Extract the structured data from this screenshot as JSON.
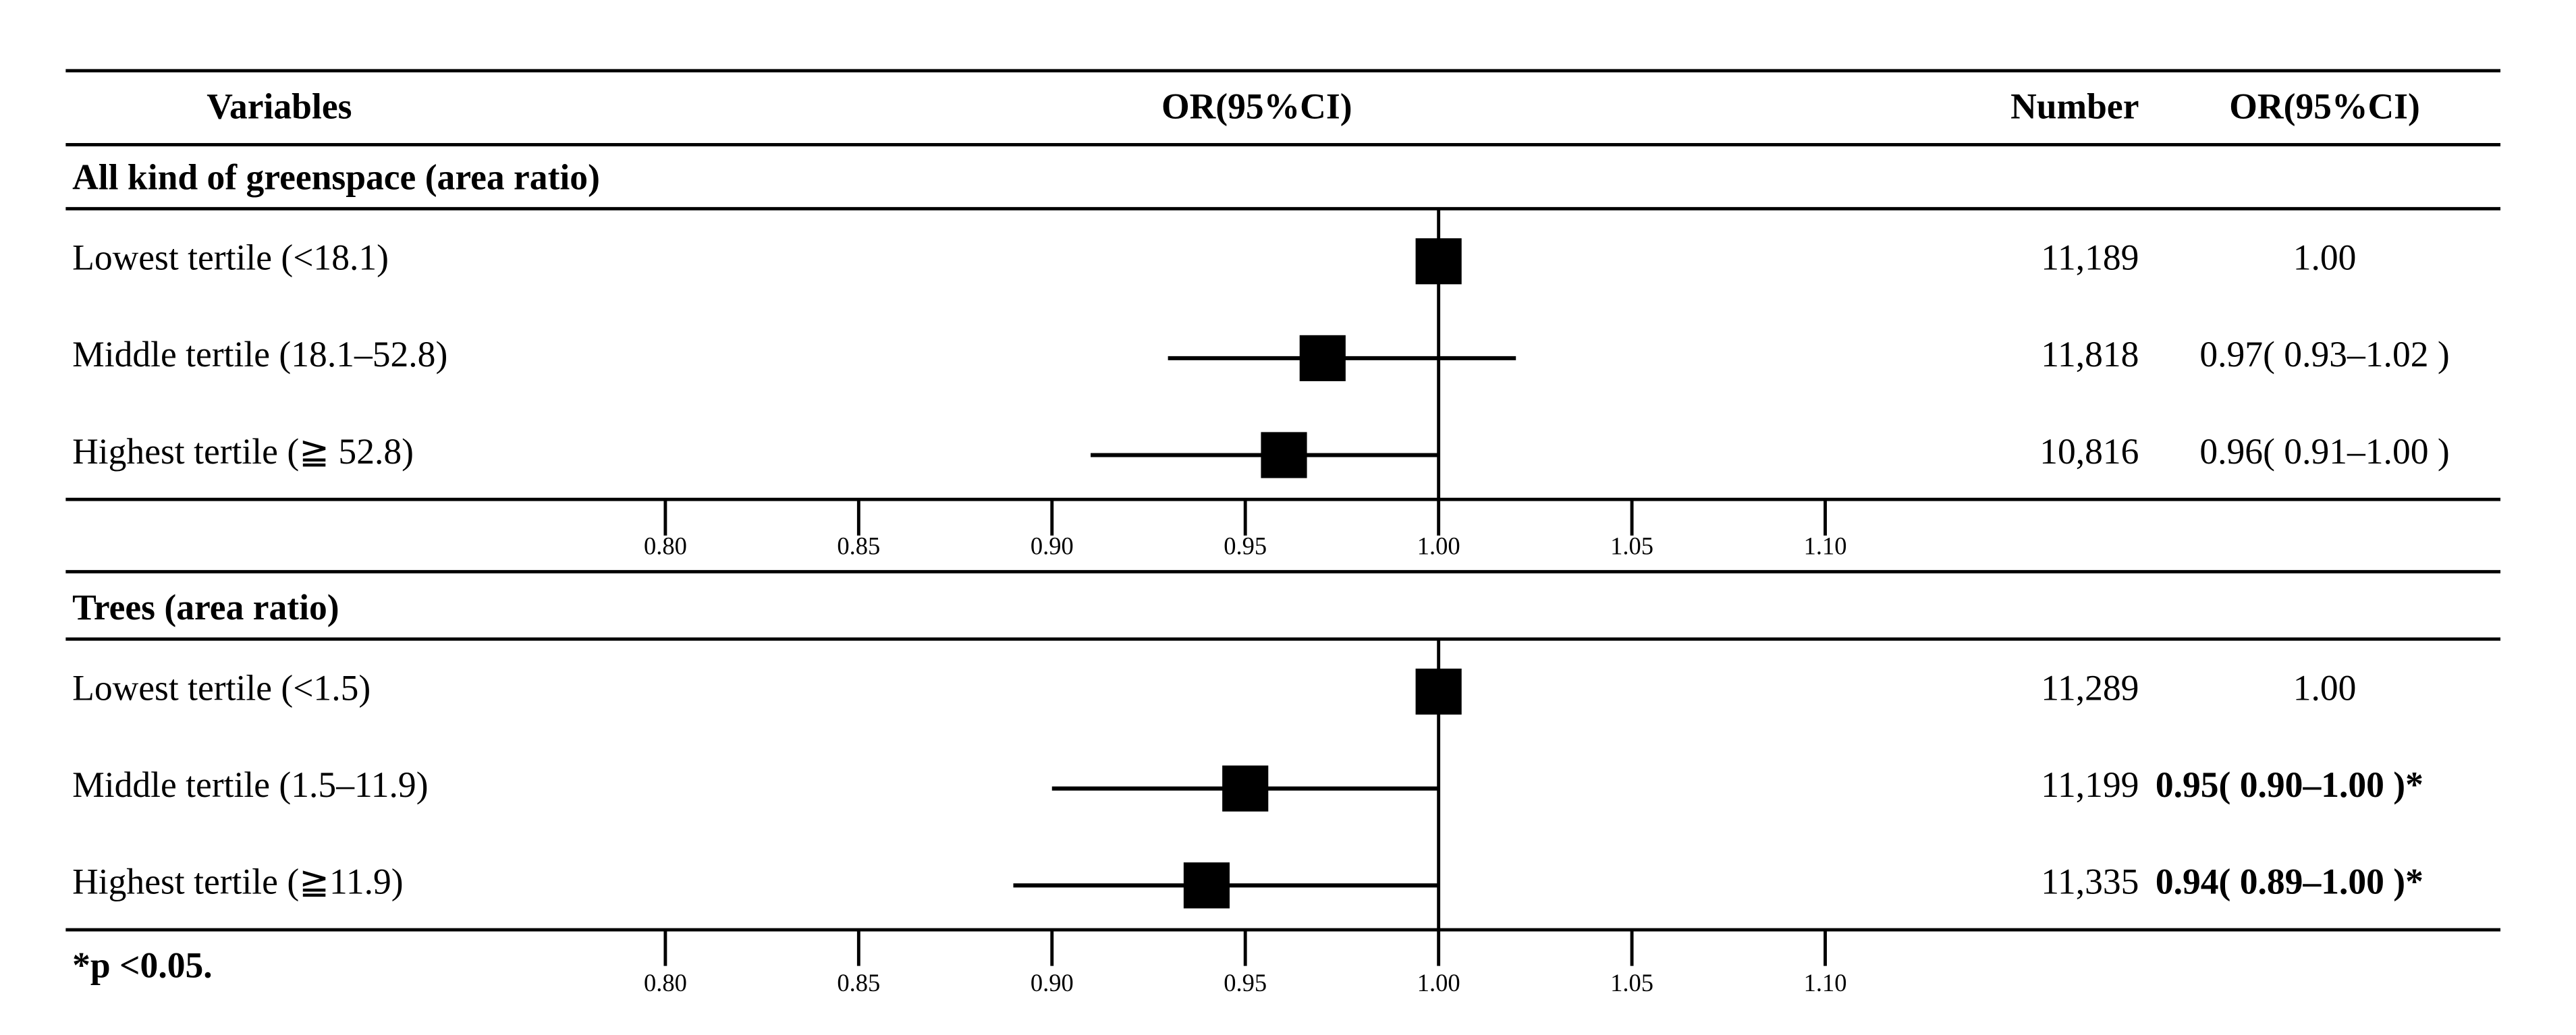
{
  "chart_data": {
    "type": "forest",
    "headers": {
      "variables": "Variables",
      "plot": "OR(95%CI)",
      "number": "Number",
      "estimate": "OR(95%CI)"
    },
    "xlim": [
      0.8,
      1.1
    ],
    "xticks": [
      {
        "value": 0.8,
        "label": "0.80"
      },
      {
        "value": 0.85,
        "label": "0.85"
      },
      {
        "value": 0.9,
        "label": "0.90"
      },
      {
        "value": 0.95,
        "label": "0.95"
      },
      {
        "value": 1.0,
        "label": "1.00"
      },
      {
        "value": 1.05,
        "label": "1.05"
      },
      {
        "value": 1.1,
        "label": "1.10"
      }
    ],
    "color": "#000000",
    "footnote": "*p <0.05.",
    "panels": [
      {
        "title": "All kind of greenspace (area ratio)",
        "rows": [
          {
            "label": "Lowest tertile (<18.1)",
            "number": "11,189",
            "value": 1.0,
            "lower": null,
            "upper": null,
            "value_label": "1.00",
            "bold": false
          },
          {
            "label": "Middle tertile (18.1–52.8)",
            "number": "11,818",
            "value": 0.97,
            "lower": 0.93,
            "upper": 1.02,
            "value_label": "0.97( 0.93–1.02 )",
            "bold": false
          },
          {
            "label": "Highest tertile (≧ 52.8)",
            "number": "10,816",
            "value": 0.96,
            "lower": 0.91,
            "upper": 1.0,
            "value_label": "0.96( 0.91–1.00 )",
            "bold": false
          }
        ]
      },
      {
        "title": "Trees (area ratio)",
        "rows": [
          {
            "label": "Lowest tertile (<1.5)",
            "number": "11,289",
            "value": 1.0,
            "lower": null,
            "upper": null,
            "value_label": "1.00",
            "bold": false
          },
          {
            "label": "Middle tertile (1.5–11.9)",
            "number": "11,199",
            "value": 0.95,
            "lower": 0.9,
            "upper": 1.0,
            "value_label": "0.95( 0.90–1.00 )*",
            "bold": true
          },
          {
            "label": "Highest tertile (≧11.9)",
            "number": "11,335",
            "value": 0.94,
            "lower": 0.89,
            "upper": 1.0,
            "value_label": "0.94( 0.89–1.00 )*",
            "bold": true
          }
        ]
      }
    ]
  }
}
